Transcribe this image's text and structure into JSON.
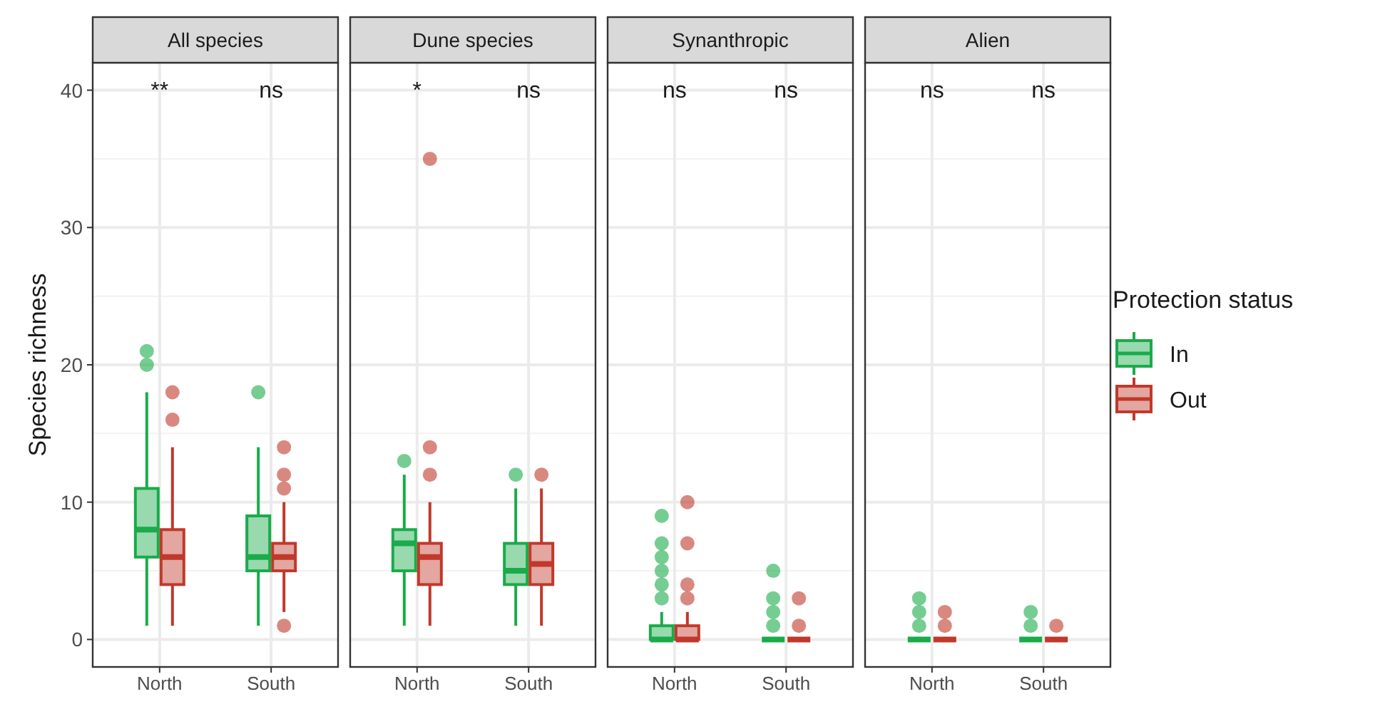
{
  "chart_data": [
    {
      "type": "box",
      "title": "All species",
      "ylabel": "Species richness",
      "categories": [
        "North",
        "South"
      ],
      "ylim": [
        -2,
        42
      ],
      "yticks": [
        0,
        10,
        20,
        30,
        40
      ],
      "grid": true,
      "legend": false,
      "series": [
        {
          "color": "#1aab4a",
          "boxes": [
            {
              "low": 1,
              "q1": 6,
              "median": 8,
              "q3": 11,
              "high": 18,
              "outliers": [
                20,
                21
              ]
            },
            {
              "low": 1,
              "q1": 5,
              "median": 6,
              "q3": 9,
              "high": 14,
              "outliers": [
                18
              ]
            }
          ]
        },
        {
          "color": "#c0392b",
          "boxes": [
            {
              "low": 1,
              "q1": 4,
              "median": 6,
              "q3": 8,
              "high": 14,
              "outliers": [
                16,
                18
              ]
            },
            {
              "low": 2,
              "q1": 5,
              "median": 6,
              "q3": 7,
              "high": 10,
              "outliers": [
                1,
                11,
                12,
                14
              ]
            }
          ]
        }
      ],
      "annotations": [
        "**",
        "ns"
      ]
    },
    {
      "type": "box",
      "title": "Dune species",
      "categories": [
        "North",
        "South"
      ],
      "ylim": [
        -2,
        42
      ],
      "yticks": [
        0,
        10,
        20,
        30,
        40
      ],
      "tick_labels": "x",
      "grid": true,
      "legend": false,
      "series": [
        {
          "color": "#1aab4a",
          "boxes": [
            {
              "low": 1,
              "q1": 5,
              "median": 7,
              "q3": 8,
              "high": 12,
              "outliers": [
                13
              ]
            },
            {
              "low": 1,
              "q1": 4,
              "median": 5,
              "q3": 7,
              "high": 11,
              "outliers": [
                12
              ]
            }
          ]
        },
        {
          "color": "#c0392b",
          "boxes": [
            {
              "low": 1,
              "q1": 4,
              "median": 6,
              "q3": 7,
              "high": 10,
              "outliers": [
                12,
                14,
                35
              ]
            },
            {
              "low": 1,
              "q1": 4,
              "median": 5.5,
              "q3": 7,
              "high": 11,
              "outliers": [
                12
              ]
            }
          ]
        }
      ],
      "annotations": [
        "*",
        "ns"
      ]
    },
    {
      "type": "box",
      "title": "Synanthropic",
      "categories": [
        "North",
        "South"
      ],
      "ylim": [
        -2,
        42
      ],
      "yticks": [
        0,
        10,
        20,
        30,
        40
      ],
      "tick_labels": "x",
      "grid": true,
      "legend": false,
      "series": [
        {
          "color": "#1aab4a",
          "boxes": [
            {
              "low": 0,
              "q1": 0,
              "median": 0,
              "q3": 1,
              "high": 2,
              "outliers": [
                3,
                4,
                5,
                6,
                7,
                9
              ]
            },
            {
              "low": 0,
              "q1": 0,
              "median": 0,
              "q3": 0,
              "high": 0,
              "outliers": [
                1,
                2,
                3,
                5
              ]
            }
          ]
        },
        {
          "color": "#c0392b",
          "boxes": [
            {
              "low": 0,
              "q1": 0,
              "median": 0,
              "q3": 1,
              "high": 2,
              "outliers": [
                3,
                4,
                7,
                10
              ]
            },
            {
              "low": 0,
              "q1": 0,
              "median": 0,
              "q3": 0,
              "high": 0,
              "outliers": [
                1,
                3
              ]
            }
          ]
        }
      ],
      "annotations": [
        "ns",
        "ns"
      ]
    },
    {
      "type": "box",
      "title": "Alien",
      "categories": [
        "North",
        "South"
      ],
      "ylim": [
        -2,
        42
      ],
      "yticks": [
        0,
        10,
        20,
        30,
        40
      ],
      "tick_labels": "x",
      "grid": true,
      "legend": "right",
      "legend_title": "Protection status",
      "series": [
        {
          "name": "In",
          "color": "#1aab4a",
          "boxes": [
            {
              "low": 0,
              "q1": 0,
              "median": 0,
              "q3": 0,
              "high": 0,
              "outliers": [
                1,
                2,
                3
              ]
            },
            {
              "low": 0,
              "q1": 0,
              "median": 0,
              "q3": 0,
              "high": 0,
              "outliers": [
                1,
                2
              ]
            }
          ]
        },
        {
          "name": "Out",
          "color": "#c0392b",
          "boxes": [
            {
              "low": 0,
              "q1": 0,
              "median": 0,
              "q3": 0,
              "high": 0,
              "outliers": [
                1,
                2
              ]
            },
            {
              "low": 0,
              "q1": 0,
              "median": 0,
              "q3": 0,
              "high": 0,
              "outliers": [
                1
              ]
            }
          ]
        }
      ],
      "annotations": [
        "ns",
        "ns"
      ]
    }
  ]
}
